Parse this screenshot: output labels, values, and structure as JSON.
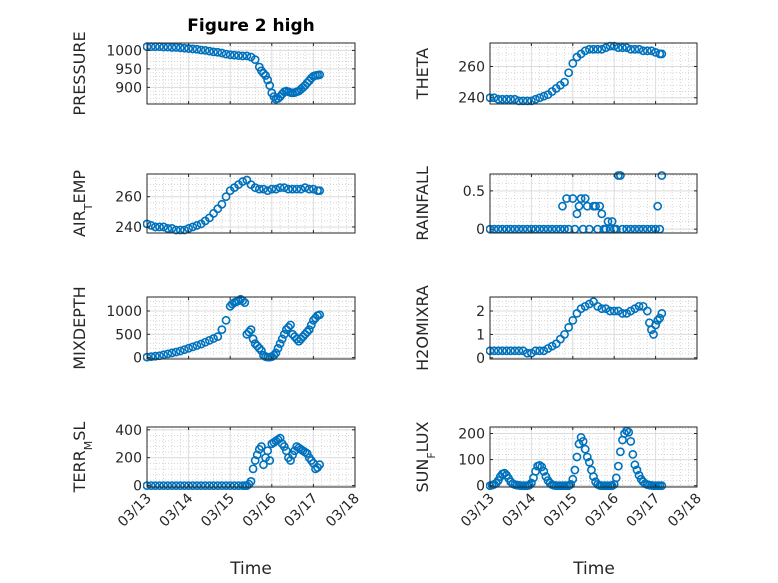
{
  "figure_title": "Figure 2 high",
  "colors": {
    "marker": "#0072bd",
    "axis": "#262626",
    "grid_major": "#dcdcdc",
    "grid_minor": "#c8c8c8"
  },
  "x_ticks": [
    "03/13",
    "03/14",
    "03/15",
    "03/16",
    "03/17",
    "03/18"
  ],
  "x_label": "Time",
  "chart_data": [
    {
      "type": "scatter",
      "ylabel": "PRESSURE",
      "title": "Figure 2 high",
      "xlim": [
        0,
        5
      ],
      "ylim": [
        855,
        1020
      ],
      "yticks": [
        "1000",
        "950",
        "900"
      ],
      "ytick_values": [
        1000,
        950,
        900
      ],
      "grid": true,
      "marker": "circle-open",
      "x": [
        0.0,
        0.1,
        0.2,
        0.3,
        0.4,
        0.5,
        0.6,
        0.7,
        0.8,
        0.9,
        1.0,
        1.1,
        1.2,
        1.3,
        1.4,
        1.5,
        1.6,
        1.7,
        1.8,
        1.9,
        2.0,
        2.1,
        2.2,
        2.3,
        2.4,
        2.5,
        2.6,
        2.7,
        2.75,
        2.8,
        2.85,
        2.9,
        2.95,
        3.0,
        3.05,
        3.1,
        3.15,
        3.2,
        3.25,
        3.3,
        3.35,
        3.4,
        3.45,
        3.5,
        3.55,
        3.6,
        3.65,
        3.7,
        3.75,
        3.8,
        3.85,
        3.9,
        3.95,
        4.0,
        4.05,
        4.1,
        4.15
      ],
      "y": [
        1010,
        1010,
        1010,
        1010,
        1009,
        1009,
        1008,
        1008,
        1007,
        1006,
        1005,
        1004,
        1003,
        1001,
        1000,
        998,
        996,
        995,
        993,
        990,
        988,
        987,
        986,
        985,
        985,
        982,
        975,
        955,
        945,
        938,
        932,
        920,
        905,
        885,
        875,
        868,
        870,
        875,
        882,
        888,
        890,
        888,
        886,
        885,
        886,
        888,
        890,
        895,
        900,
        905,
        912,
        918,
        925,
        930,
        932,
        933,
        934
      ]
    },
    {
      "type": "scatter",
      "ylabel": "THETA",
      "xlim": [
        0,
        5
      ],
      "ylim": [
        236,
        275
      ],
      "yticks": [
        "260",
        "240"
      ],
      "ytick_values": [
        260,
        240
      ],
      "grid": true,
      "marker": "circle-open",
      "x": [
        0.0,
        0.1,
        0.2,
        0.3,
        0.4,
        0.5,
        0.6,
        0.7,
        0.8,
        0.9,
        1.0,
        1.1,
        1.2,
        1.3,
        1.4,
        1.5,
        1.6,
        1.7,
        1.8,
        1.9,
        2.0,
        2.1,
        2.2,
        2.3,
        2.4,
        2.5,
        2.6,
        2.7,
        2.8,
        2.9,
        3.0,
        3.1,
        3.2,
        3.3,
        3.4,
        3.5,
        3.6,
        3.7,
        3.8,
        3.9,
        4.0,
        4.1,
        4.15
      ],
      "y": [
        240,
        240,
        239,
        239,
        239,
        239,
        239,
        238,
        238,
        238,
        238,
        239,
        240,
        241,
        242,
        244,
        246,
        248,
        250,
        256,
        262,
        266,
        268,
        270,
        271,
        271,
        271,
        271,
        272,
        273,
        273,
        272,
        272,
        272,
        271,
        271,
        271,
        270,
        270,
        270,
        269,
        268,
        268
      ]
    },
    {
      "type": "scatter",
      "ylabel": "AIR_TEMP",
      "xlim": [
        0,
        5
      ],
      "ylim": [
        236,
        275
      ],
      "yticks": [
        "260",
        "240"
      ],
      "ytick_values": [
        260,
        240
      ],
      "grid": true,
      "marker": "circle-open",
      "x": [
        0.0,
        0.1,
        0.2,
        0.3,
        0.4,
        0.5,
        0.6,
        0.7,
        0.8,
        0.9,
        1.0,
        1.1,
        1.2,
        1.3,
        1.4,
        1.5,
        1.6,
        1.7,
        1.8,
        1.9,
        2.0,
        2.1,
        2.2,
        2.3,
        2.4,
        2.5,
        2.6,
        2.7,
        2.8,
        2.9,
        3.0,
        3.1,
        3.2,
        3.3,
        3.4,
        3.5,
        3.6,
        3.7,
        3.8,
        3.9,
        4.0,
        4.1,
        4.15
      ],
      "y": [
        242,
        241,
        240,
        240,
        240,
        239,
        239,
        238,
        238,
        238,
        239,
        240,
        241,
        242,
        244,
        246,
        249,
        252,
        255,
        260,
        264,
        266,
        268,
        270,
        271,
        268,
        266,
        265,
        265,
        264,
        265,
        265,
        266,
        266,
        265,
        265,
        265,
        265,
        266,
        265,
        265,
        264,
        264
      ]
    },
    {
      "type": "scatter",
      "ylabel": "RAINFALL",
      "xlim": [
        0,
        5
      ],
      "ylim": [
        -0.05,
        0.72
      ],
      "yticks": [
        "0.5",
        "0"
      ],
      "ytick_values": [
        0.5,
        0
      ],
      "grid": true,
      "marker": "circle-open",
      "x": [
        0.0,
        0.1,
        0.2,
        0.3,
        0.4,
        0.5,
        0.6,
        0.7,
        0.8,
        0.9,
        1.0,
        1.1,
        1.2,
        1.3,
        1.4,
        1.5,
        1.6,
        1.7,
        1.75,
        1.8,
        1.85,
        1.9,
        2.0,
        2.05,
        2.1,
        2.15,
        2.2,
        2.25,
        2.3,
        2.35,
        2.4,
        2.5,
        2.55,
        2.6,
        2.65,
        2.7,
        2.75,
        2.8,
        2.85,
        2.9,
        2.95,
        3.0,
        3.05,
        3.1,
        3.15,
        3.2,
        3.3,
        3.4,
        3.5,
        3.6,
        3.7,
        3.8,
        3.9,
        4.0,
        4.05,
        4.1,
        4.15
      ],
      "y": [
        0,
        0,
        0,
        0,
        0,
        0,
        0,
        0,
        0,
        0,
        0,
        0,
        0,
        0,
        0,
        0,
        0,
        0,
        0.3,
        0,
        0.4,
        0,
        0.4,
        0,
        0.2,
        0.3,
        0.4,
        0,
        0.4,
        0.3,
        0,
        0.3,
        0.3,
        0,
        0.3,
        0.2,
        0,
        0,
        0.1,
        0,
        0.1,
        0,
        0,
        0.7,
        0.7,
        0,
        0,
        0,
        0,
        0,
        0,
        0,
        0,
        0,
        0.3,
        0,
        0.7
      ]
    },
    {
      "type": "scatter",
      "ylabel": "MIXDEPTH",
      "xlim": [
        0,
        5
      ],
      "ylim": [
        -30,
        1300
      ],
      "yticks": [
        "1000",
        "500",
        "0"
      ],
      "ytick_values": [
        1000,
        500,
        0
      ],
      "grid": true,
      "marker": "circle-open",
      "x": [
        0.0,
        0.1,
        0.2,
        0.3,
        0.4,
        0.5,
        0.6,
        0.7,
        0.8,
        0.9,
        1.0,
        1.1,
        1.2,
        1.3,
        1.4,
        1.5,
        1.6,
        1.7,
        1.8,
        1.9,
        2.0,
        2.05,
        2.1,
        2.15,
        2.2,
        2.25,
        2.3,
        2.35,
        2.4,
        2.45,
        2.5,
        2.55,
        2.6,
        2.65,
        2.7,
        2.75,
        2.8,
        2.85,
        2.9,
        2.95,
        3.0,
        3.05,
        3.1,
        3.15,
        3.2,
        3.25,
        3.3,
        3.35,
        3.4,
        3.45,
        3.5,
        3.55,
        3.6,
        3.65,
        3.7,
        3.75,
        3.8,
        3.85,
        3.9,
        3.95,
        4.0,
        4.05,
        4.1,
        4.15
      ],
      "y": [
        10,
        20,
        30,
        40,
        60,
        80,
        100,
        120,
        140,
        170,
        200,
        230,
        260,
        290,
        330,
        370,
        410,
        450,
        600,
        800,
        1100,
        1150,
        1180,
        1200,
        1220,
        1250,
        1220,
        1180,
        500,
        550,
        600,
        400,
        300,
        250,
        200,
        150,
        50,
        20,
        10,
        10,
        20,
        50,
        100,
        200,
        300,
        400,
        500,
        600,
        650,
        700,
        500,
        450,
        400,
        350,
        400,
        450,
        500,
        550,
        600,
        700,
        800,
        850,
        900,
        920
      ]
    },
    {
      "type": "scatter",
      "ylabel": "H2OMIXRA",
      "xlim": [
        0,
        5
      ],
      "ylim": [
        -0.05,
        2.6
      ],
      "yticks": [
        "2",
        "1",
        "0"
      ],
      "ytick_values": [
        2,
        1,
        0
      ],
      "grid": true,
      "marker": "circle-open",
      "x": [
        0.0,
        0.1,
        0.2,
        0.3,
        0.4,
        0.5,
        0.6,
        0.7,
        0.8,
        0.9,
        1.0,
        1.1,
        1.2,
        1.3,
        1.4,
        1.5,
        1.6,
        1.7,
        1.8,
        1.9,
        2.0,
        2.1,
        2.2,
        2.3,
        2.4,
        2.5,
        2.6,
        2.7,
        2.8,
        2.9,
        3.0,
        3.1,
        3.2,
        3.3,
        3.4,
        3.5,
        3.6,
        3.7,
        3.8,
        3.85,
        3.9,
        3.95,
        4.0,
        4.05,
        4.1,
        4.15
      ],
      "y": [
        0.3,
        0.3,
        0.3,
        0.3,
        0.3,
        0.3,
        0.3,
        0.3,
        0.3,
        0.2,
        0.2,
        0.3,
        0.3,
        0.3,
        0.4,
        0.5,
        0.6,
        0.8,
        1.0,
        1.3,
        1.6,
        1.9,
        2.1,
        2.2,
        2.3,
        2.4,
        2.2,
        2.1,
        2.1,
        2.0,
        2.0,
        2.0,
        1.9,
        1.9,
        2.0,
        2.1,
        2.2,
        2.2,
        2.0,
        1.5,
        1.2,
        1.0,
        1.4,
        1.6,
        1.7,
        1.9
      ]
    },
    {
      "type": "scatter",
      "ylabel": "TERR_MSL",
      "xlim": [
        0,
        5
      ],
      "ylim": [
        -10,
        420
      ],
      "yticks": [
        "400",
        "200",
        "0"
      ],
      "ytick_values": [
        400,
        200,
        0
      ],
      "grid": true,
      "marker": "circle-open",
      "x": [
        0.0,
        0.1,
        0.2,
        0.3,
        0.4,
        0.5,
        0.6,
        0.7,
        0.8,
        0.9,
        1.0,
        1.1,
        1.2,
        1.3,
        1.4,
        1.5,
        1.6,
        1.7,
        1.8,
        1.9,
        2.0,
        2.1,
        2.2,
        2.3,
        2.35,
        2.4,
        2.45,
        2.5,
        2.55,
        2.6,
        2.65,
        2.7,
        2.75,
        2.8,
        2.85,
        2.9,
        2.95,
        3.0,
        3.05,
        3.1,
        3.15,
        3.2,
        3.25,
        3.3,
        3.35,
        3.4,
        3.45,
        3.5,
        3.55,
        3.6,
        3.65,
        3.7,
        3.75,
        3.8,
        3.85,
        3.9,
        3.95,
        4.0,
        4.05,
        4.1,
        4.15
      ],
      "y": [
        0,
        0,
        0,
        0,
        0,
        0,
        0,
        0,
        0,
        0,
        0,
        0,
        0,
        0,
        0,
        0,
        0,
        0,
        0,
        0,
        0,
        0,
        0,
        0,
        0,
        0,
        10,
        30,
        120,
        180,
        220,
        260,
        280,
        150,
        200,
        250,
        180,
        300,
        310,
        320,
        330,
        340,
        300,
        280,
        250,
        200,
        180,
        220,
        250,
        280,
        270,
        260,
        250,
        240,
        230,
        200,
        180,
        160,
        120,
        130,
        150
      ]
    },
    {
      "type": "scatter",
      "ylabel": "SUN_FLUX",
      "xlim": [
        0,
        5
      ],
      "ylim": [
        -5,
        225
      ],
      "yticks": [
        "200",
        "100",
        "0"
      ],
      "ytick_values": [
        200,
        100,
        0
      ],
      "grid": true,
      "marker": "circle-open",
      "x": [
        0.0,
        0.05,
        0.1,
        0.15,
        0.2,
        0.25,
        0.3,
        0.35,
        0.4,
        0.45,
        0.5,
        0.55,
        0.6,
        0.65,
        0.7,
        0.75,
        0.8,
        0.85,
        0.9,
        0.95,
        1.0,
        1.05,
        1.1,
        1.15,
        1.2,
        1.25,
        1.3,
        1.35,
        1.4,
        1.45,
        1.5,
        1.55,
        1.6,
        1.65,
        1.7,
        1.75,
        1.8,
        1.85,
        1.9,
        1.95,
        2.0,
        2.05,
        2.1,
        2.15,
        2.2,
        2.25,
        2.3,
        2.35,
        2.4,
        2.45,
        2.5,
        2.55,
        2.6,
        2.65,
        2.7,
        2.75,
        2.8,
        2.85,
        2.9,
        2.95,
        3.0,
        3.05,
        3.1,
        3.15,
        3.2,
        3.25,
        3.3,
        3.35,
        3.4,
        3.45,
        3.5,
        3.55,
        3.6,
        3.65,
        3.7,
        3.75,
        3.8,
        3.85,
        3.9,
        3.95,
        4.0,
        4.05,
        4.1,
        4.15
      ],
      "y": [
        0,
        2,
        5,
        10,
        20,
        35,
        45,
        48,
        40,
        28,
        15,
        8,
        4,
        2,
        1,
        0,
        0,
        0,
        0,
        2,
        10,
        30,
        55,
        75,
        78,
        72,
        55,
        35,
        20,
        10,
        4,
        1,
        0,
        0,
        0,
        0,
        0,
        0,
        0,
        5,
        25,
        60,
        110,
        160,
        185,
        170,
        140,
        110,
        90,
        60,
        35,
        15,
        5,
        1,
        0,
        0,
        0,
        0,
        0,
        0,
        5,
        30,
        75,
        130,
        175,
        200,
        210,
        205,
        170,
        120,
        80,
        60,
        40,
        25,
        15,
        8,
        4,
        2,
        1,
        0,
        0,
        0,
        0,
        0
      ]
    }
  ]
}
